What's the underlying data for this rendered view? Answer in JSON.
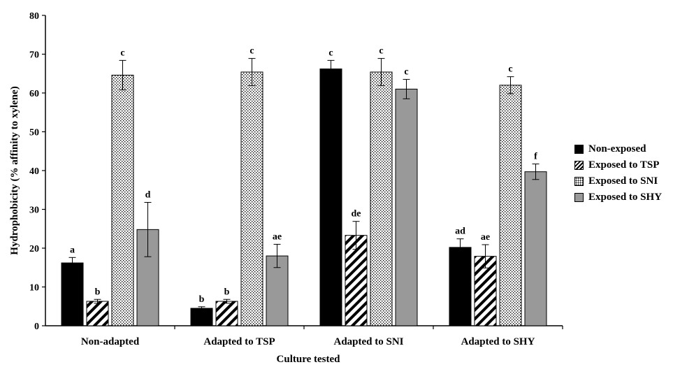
{
  "chart_data": {
    "type": "bar",
    "title": "",
    "xlabel": "Culture tested",
    "ylabel": "Hydrophobicity (% affinity to xylene)",
    "ylim": [
      0,
      80
    ],
    "yticks": [
      "0",
      "10",
      "20",
      "30",
      "40",
      "50",
      "60",
      "70",
      "80"
    ],
    "categories": [
      "Non-adapted",
      "Adapted to TSP",
      "Adapted to SNI",
      "Adapted to SHY"
    ],
    "legend_position": "right",
    "grid": false,
    "series": [
      {
        "name": "Non-exposed",
        "pattern": "solid-black",
        "color": "#000000",
        "values": [
          16.2,
          4.5,
          66.2,
          20.2
        ],
        "errors": [
          1.4,
          0.4,
          2.2,
          2.2
        ],
        "labels": [
          "a",
          "b",
          "c",
          "ad"
        ]
      },
      {
        "name": "Exposed to TSP",
        "pattern": "diagonal-stripes",
        "color": "#000000",
        "values": [
          6.3,
          6.3,
          23.3,
          17.9
        ],
        "errors": [
          0.5,
          0.5,
          3.6,
          3.0
        ],
        "labels": [
          "b",
          "b",
          "de",
          "ae"
        ]
      },
      {
        "name": "Exposed to SNI",
        "pattern": "dotted",
        "color": "#000000",
        "values": [
          64.6,
          65.4,
          65.4,
          62.0
        ],
        "errors": [
          3.8,
          3.5,
          3.5,
          2.2
        ],
        "labels": [
          "c",
          "c",
          "c",
          "c"
        ]
      },
      {
        "name": "Exposed to SHY",
        "pattern": "solid-gray",
        "color": "#999999",
        "values": [
          24.8,
          18.0,
          61.0,
          39.7
        ],
        "errors": [
          7.0,
          3.0,
          2.5,
          2.0
        ],
        "labels": [
          "d",
          "ae",
          "c",
          "f"
        ]
      }
    ]
  }
}
